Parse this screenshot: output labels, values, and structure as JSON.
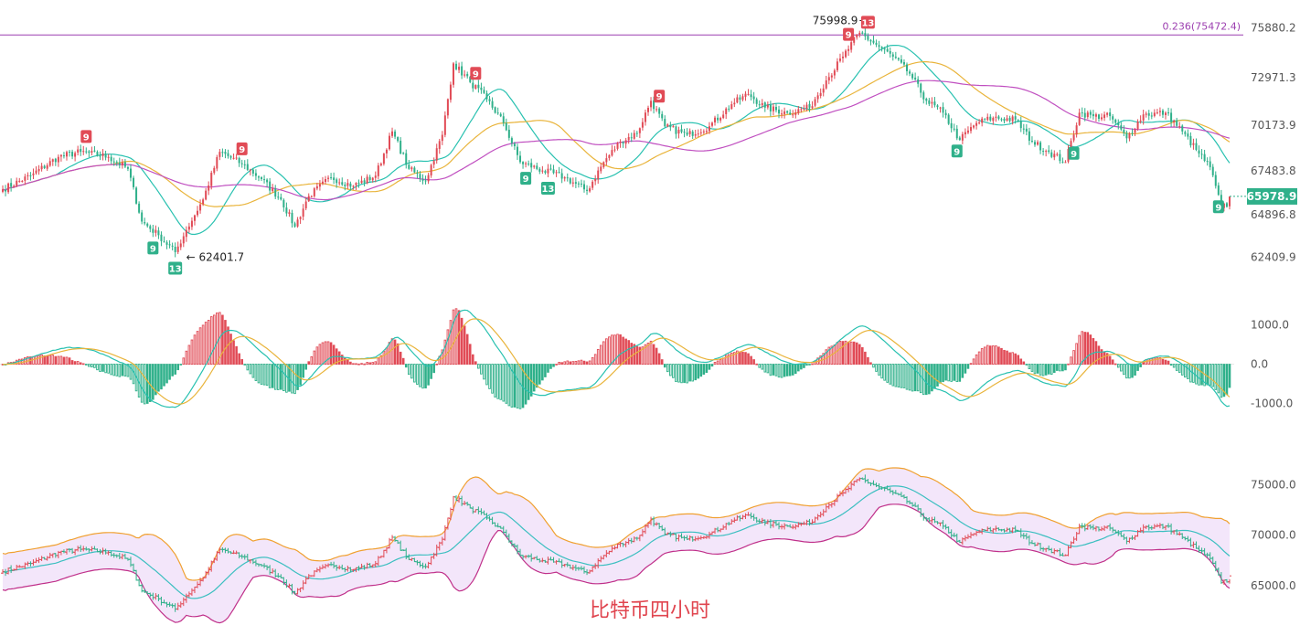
{
  "colors": {
    "up": "#e14b56",
    "down": "#2fb08a",
    "ma_fast": "#28c1b0",
    "ma_mid": "#e9b43b",
    "ma_slow": "#c04fc0",
    "fib_line": "#9c3fb0",
    "boll_fill": "#f3e6fa",
    "boll_upper": "#f0a030",
    "boll_mid": "#3bbfc0",
    "boll_lower": "#c0308a",
    "price_tag": "#2fb08a"
  },
  "caption": "比特币四小时",
  "chart_data": [
    {
      "type": "candlestick",
      "title": "",
      "y_ticks": [
        "75880.2",
        "72971.3",
        "70173.9",
        "67483.8",
        "64896.8",
        "62409.9"
      ],
      "y_tick_values": [
        75880.2,
        72971.3,
        70173.9,
        67483.8,
        64896.8,
        62409.9
      ],
      "ylim": [
        61300,
        77100
      ],
      "last_price": "65978.9",
      "last_price_value": 65978.9,
      "high_label": "75998.9",
      "high_value": 75998.9,
      "low_label": "62401.7",
      "low_value": 62401.7,
      "fib_label": "0.236(75472.4)",
      "fib_value": 75472.4,
      "close_anchors": [
        [
          0,
          66400
        ],
        [
          10,
          67200
        ],
        [
          20,
          68300
        ],
        [
          28,
          68600
        ],
        [
          38,
          68300
        ],
        [
          45,
          67600
        ],
        [
          50,
          64500
        ],
        [
          56,
          63700
        ],
        [
          62,
          62700
        ],
        [
          66,
          64000
        ],
        [
          72,
          65800
        ],
        [
          78,
          68600
        ],
        [
          86,
          67900
        ],
        [
          93,
          67000
        ],
        [
          100,
          65800
        ],
        [
          105,
          64200
        ],
        [
          110,
          66000
        ],
        [
          118,
          67100
        ],
        [
          126,
          66600
        ],
        [
          134,
          67200
        ],
        [
          140,
          69800
        ],
        [
          146,
          67600
        ],
        [
          152,
          66900
        ],
        [
          158,
          69600
        ],
        [
          162,
          73800
        ],
        [
          168,
          72700
        ],
        [
          174,
          71700
        ],
        [
          180,
          70300
        ],
        [
          186,
          68000
        ],
        [
          194,
          67500
        ],
        [
          202,
          67100
        ],
        [
          210,
          66300
        ],
        [
          216,
          68000
        ],
        [
          222,
          69200
        ],
        [
          228,
          69700
        ],
        [
          233,
          71600
        ],
        [
          238,
          70100
        ],
        [
          246,
          69600
        ],
        [
          254,
          70100
        ],
        [
          262,
          71400
        ],
        [
          268,
          72000
        ],
        [
          274,
          71200
        ],
        [
          282,
          70900
        ],
        [
          290,
          71200
        ],
        [
          296,
          72800
        ],
        [
          302,
          74200
        ],
        [
          308,
          75600
        ],
        [
          314,
          74900
        ],
        [
          320,
          74200
        ],
        [
          326,
          73200
        ],
        [
          332,
          71600
        ],
        [
          338,
          70900
        ],
        [
          344,
          69300
        ],
        [
          350,
          70300
        ],
        [
          356,
          70600
        ],
        [
          364,
          70500
        ],
        [
          370,
          69200
        ],
        [
          376,
          68600
        ],
        [
          382,
          68000
        ],
        [
          387,
          70900
        ],
        [
          392,
          70700
        ],
        [
          398,
          70700
        ],
        [
          404,
          69400
        ],
        [
          410,
          70800
        ],
        [
          418,
          70900
        ],
        [
          424,
          69800
        ],
        [
          430,
          68500
        ],
        [
          434,
          67700
        ],
        [
          438,
          65300
        ],
        [
          441,
          65600
        ]
      ],
      "badges": [
        {
          "i": 30,
          "label": "9",
          "kind": "up"
        },
        {
          "i": 86,
          "label": "9",
          "kind": "up"
        },
        {
          "i": 170,
          "label": "9",
          "kind": "up"
        },
        {
          "i": 236,
          "label": "9",
          "kind": "up"
        },
        {
          "i": 304,
          "label": "9",
          "kind": "up"
        },
        {
          "i": 311,
          "label": "13",
          "kind": "up"
        },
        {
          "i": 54,
          "label": "9",
          "kind": "down"
        },
        {
          "i": 62,
          "label": "13",
          "kind": "down"
        },
        {
          "i": 188,
          "label": "9",
          "kind": "down"
        },
        {
          "i": 196,
          "label": "13",
          "kind": "down"
        },
        {
          "i": 343,
          "label": "9",
          "kind": "down"
        },
        {
          "i": 385,
          "label": "9",
          "kind": "down"
        },
        {
          "i": 437,
          "label": "9",
          "kind": "down"
        }
      ]
    },
    {
      "type": "macd",
      "y_ticks": [
        "1000.0",
        "0.0",
        "-1000.0"
      ],
      "y_tick_values": [
        1000,
        0,
        -1000
      ],
      "ylim": [
        -1550,
        1950
      ]
    },
    {
      "type": "bollinger",
      "y_ticks": [
        "75000.0",
        "70000.0",
        "65000.0"
      ],
      "y_tick_values": [
        75000,
        70000,
        65000
      ],
      "ylim": [
        62200,
        78200
      ]
    }
  ]
}
